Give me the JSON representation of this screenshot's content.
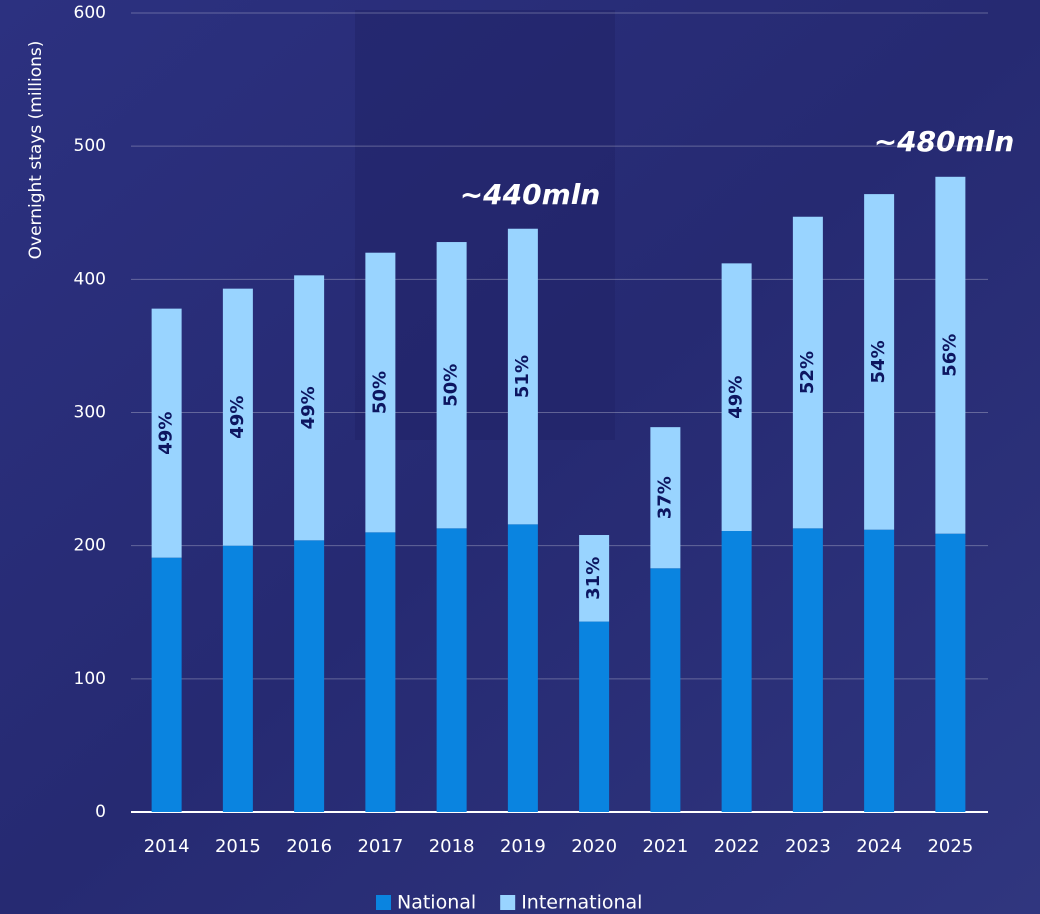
{
  "chart_data": {
    "type": "stacked_bar",
    "y_label": "Overnight stays  (millions)",
    "categories": [
      "2014",
      "2015",
      "2016",
      "2017",
      "2018",
      "2019",
      "2020",
      "2021",
      "2022",
      "2023",
      "2024",
      "2025"
    ],
    "series": [
      {
        "name": "National",
        "color": "#0a84e0",
        "values": [
          191,
          200,
          204,
          210,
          213,
          216,
          143,
          183,
          211,
          213,
          212,
          209
        ]
      },
      {
        "name": "International",
        "color": "#99d4ff",
        "values": [
          187,
          193,
          199,
          210,
          215,
          222,
          65,
          106,
          201,
          234,
          252,
          268
        ],
        "labels": [
          "49%",
          "49%",
          "49%",
          "50%",
          "50%",
          "51%",
          "31%",
          "37%",
          "49%",
          "52%",
          "54%",
          "56%"
        ]
      }
    ],
    "annotations": [
      "~440mln",
      "~480mln"
    ],
    "ylim": [
      0,
      600
    ],
    "yticks": [
      0,
      100,
      200,
      300,
      400,
      500,
      600
    ],
    "grid": true,
    "legend": "bottom"
  }
}
